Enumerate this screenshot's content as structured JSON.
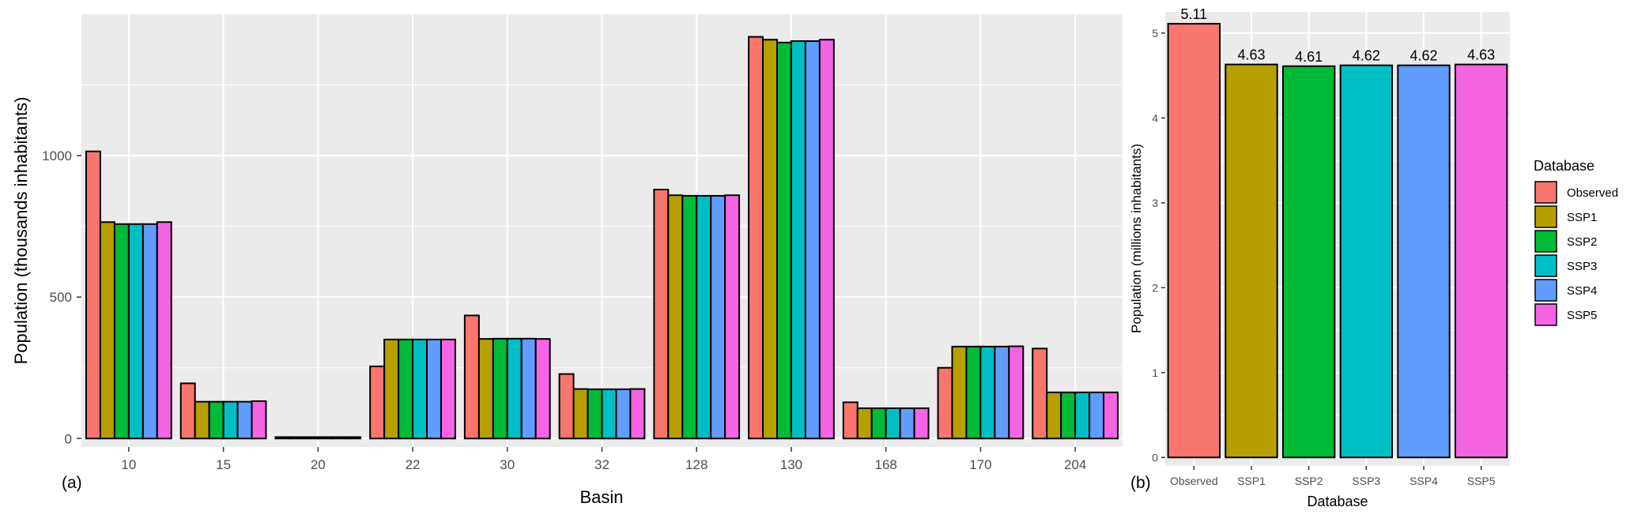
{
  "chart_data": [
    {
      "panel_label": "(a)",
      "type": "bar",
      "xlabel": "Basin",
      "ylabel": "Population (thousands inhabitants)",
      "ylim": [
        -30,
        1500
      ],
      "yticks": [
        0,
        500,
        1000
      ],
      "grid": true,
      "categories": [
        "10",
        "15",
        "20",
        "22",
        "30",
        "32",
        "128",
        "130",
        "168",
        "170",
        "204"
      ],
      "series": [
        {
          "name": "Observed",
          "color": "#F8766D",
          "values": [
            1015,
            195,
            5,
            255,
            435,
            228,
            880,
            1420,
            128,
            250,
            318
          ]
        },
        {
          "name": "SSP1",
          "color": "#B79F00",
          "values": [
            765,
            130,
            5,
            350,
            352,
            175,
            860,
            1410,
            107,
            325,
            163
          ]
        },
        {
          "name": "SSP2",
          "color": "#00BA38",
          "values": [
            758,
            130,
            5,
            350,
            353,
            174,
            858,
            1400,
            107,
            325,
            163
          ]
        },
        {
          "name": "SSP3",
          "color": "#00BFC4",
          "values": [
            758,
            130,
            5,
            350,
            353,
            174,
            858,
            1405,
            107,
            325,
            163
          ]
        },
        {
          "name": "SSP4",
          "color": "#619CFF",
          "values": [
            758,
            130,
            5,
            350,
            353,
            174,
            858,
            1405,
            107,
            325,
            163
          ]
        },
        {
          "name": "SSP5",
          "color": "#F564E3",
          "values": [
            765,
            132,
            5,
            350,
            352,
            175,
            860,
            1410,
            107,
            326,
            163
          ]
        }
      ]
    },
    {
      "panel_label": "(b)",
      "type": "bar",
      "xlabel": "Database",
      "ylabel": "Population (millions inhabitants)",
      "ylim": [
        -0.1,
        5.25
      ],
      "yticks": [
        0,
        1,
        2,
        3,
        4,
        5
      ],
      "grid": true,
      "categories": [
        "Observed",
        "SSP1",
        "SSP2",
        "SSP3",
        "SSP4",
        "SSP5"
      ],
      "values": [
        5.11,
        4.63,
        4.61,
        4.62,
        4.62,
        4.63
      ],
      "data_labels": [
        "5.11",
        "4.63",
        "4.61",
        "4.62",
        "4.62",
        "4.63"
      ],
      "colors": [
        "#F8766D",
        "#B79F00",
        "#00BA38",
        "#00BFC4",
        "#619CFF",
        "#F564E3"
      ]
    }
  ],
  "legend": {
    "title": "Database",
    "placement": "right",
    "items": [
      {
        "label": "Observed",
        "color": "#F8766D"
      },
      {
        "label": "SSP1",
        "color": "#B79F00"
      },
      {
        "label": "SSP2",
        "color": "#00BA38"
      },
      {
        "label": "SSP3",
        "color": "#00BFC4"
      },
      {
        "label": "SSP4",
        "color": "#619CFF"
      },
      {
        "label": "SSP5",
        "color": "#F564E3"
      }
    ]
  },
  "style": {
    "panel_background": "#EBEBEB",
    "grid_color": "#FFFFFF",
    "axis_text_color": "#4D4D4D"
  }
}
